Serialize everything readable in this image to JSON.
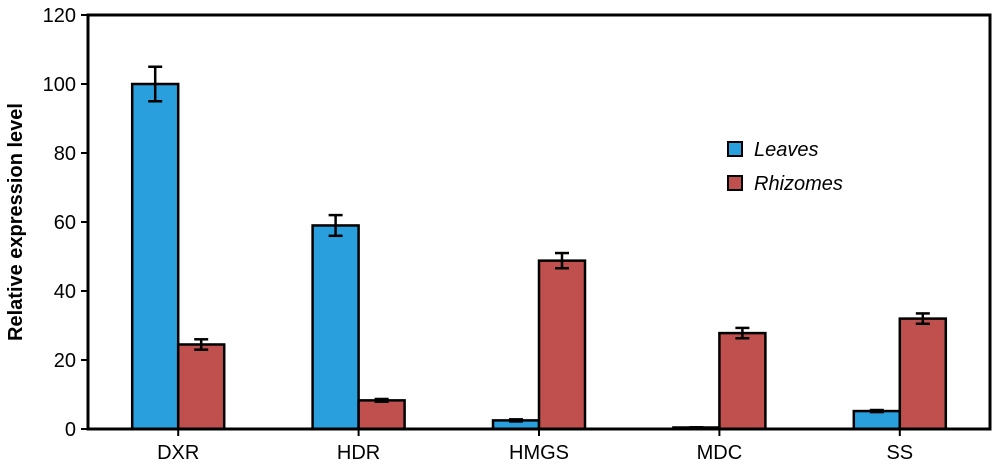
{
  "chart_data": {
    "type": "bar",
    "categories": [
      "DXR",
      "HDR",
      "HMGS",
      "MDC",
      "SS"
    ],
    "series": [
      {
        "name": "Leaves",
        "color": "#2A9FDD",
        "values": [
          100,
          59,
          2.5,
          0.3,
          5.2
        ],
        "errors": [
          5,
          3,
          0.3,
          0.2,
          0.3
        ]
      },
      {
        "name": "Rhizomes",
        "color": "#C0504D",
        "values": [
          24.5,
          8.3,
          48.8,
          27.8,
          32
        ],
        "errors": [
          1.5,
          0.4,
          2.2,
          1.5,
          1.5
        ]
      }
    ],
    "ylabel": "Relative expression level",
    "ylim": [
      0,
      120
    ],
    "yticks": [
      0,
      20,
      40,
      60,
      80,
      100,
      120
    ],
    "legend_position": "right",
    "grid": false
  }
}
